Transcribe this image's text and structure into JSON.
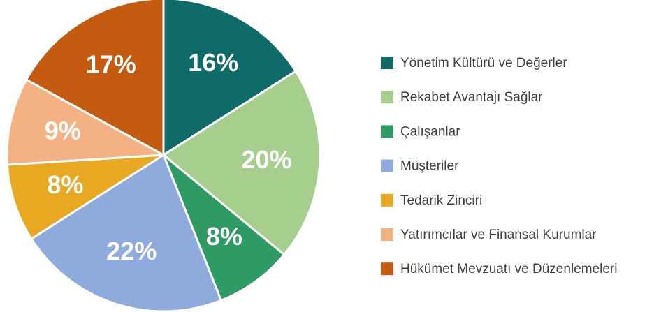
{
  "chart_data": {
    "type": "pie",
    "categories": [
      "Yönetim Kültürü ve Değerler",
      "Rekabet Avantajı Sağlar",
      "Çalışanlar",
      "Müşteriler",
      "Tedarik Zinciri",
      "Yatırımcılar ve Finansal Kurumlar",
      "Hükümet Mevzuatı ve Düzenlemeleri"
    ],
    "values": [
      16,
      20,
      8,
      22,
      8,
      9,
      17
    ],
    "value_labels": [
      "16%",
      "20%",
      "8%",
      "22%",
      "8%",
      "9%",
      "17%"
    ],
    "colors": [
      "#0e6b67",
      "#a6cf8e",
      "#2e9a64",
      "#8faadc",
      "#e8a822",
      "#f4b183",
      "#c55a11"
    ],
    "legend": "right"
  }
}
